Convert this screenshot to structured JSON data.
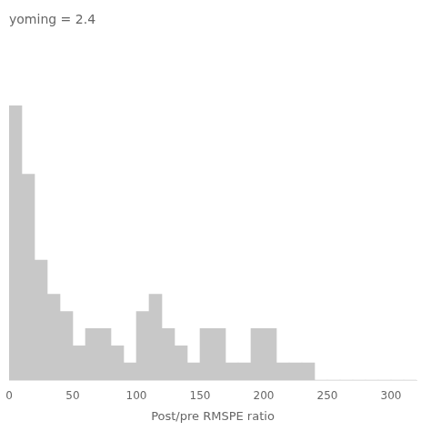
{
  "chart_data": {
    "type": "histogram",
    "title": "yoming = 2.4",
    "xlabel": "Post/pre RMSPE ratio",
    "bins": [
      0,
      10,
      20,
      30,
      40,
      50,
      60,
      70,
      80,
      90,
      100,
      110,
      120,
      130,
      140,
      150,
      160,
      170,
      180,
      190,
      200,
      210,
      220,
      230,
      240,
      250,
      260,
      270,
      280,
      290,
      300,
      310,
      320
    ],
    "values": [
      16,
      12,
      7,
      5,
      4,
      2,
      3,
      3,
      2,
      1,
      4,
      5,
      3,
      2,
      1,
      3,
      3,
      1,
      1,
      3,
      3,
      1,
      1,
      1,
      0,
      0,
      0,
      0,
      0,
      0,
      0,
      0
    ],
    "color": "#c8c8c8",
    "xlim": [
      0,
      320
    ],
    "xticks": [
      0,
      50,
      100,
      150,
      200,
      250,
      300
    ],
    "ylim": [
      0,
      20
    ],
    "grid": false,
    "tick_labels": "x"
  }
}
